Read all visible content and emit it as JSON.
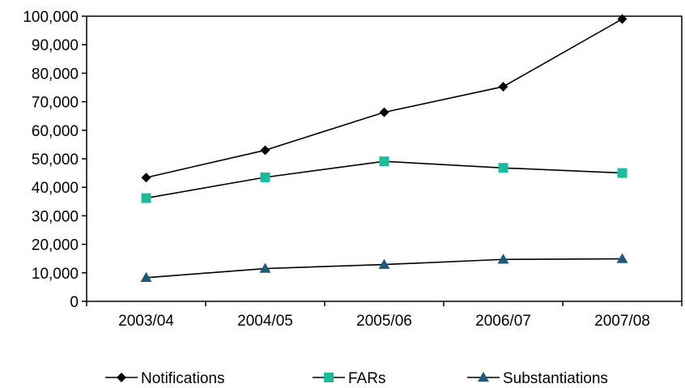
{
  "chart_data": {
    "type": "line",
    "categories": [
      "2003/04",
      "2004/05",
      "2005/06",
      "2006/07",
      "2007/08"
    ],
    "series": [
      {
        "name": "Notifications",
        "values": [
          43400,
          53000,
          66300,
          75300,
          99000
        ],
        "color": "#000000",
        "marker": "diamond"
      },
      {
        "name": "FARs",
        "values": [
          36200,
          43500,
          49100,
          46800,
          45000
        ],
        "color": "#1ABC9C",
        "marker": "square"
      },
      {
        "name": "Substantiations",
        "values": [
          8300,
          11500,
          12900,
          14700,
          14900
        ],
        "color": "#1F5A7A",
        "marker": "triangle"
      }
    ],
    "yticks": [
      "0",
      "10,000",
      "20,000",
      "30,000",
      "40,000",
      "50,000",
      "60,000",
      "70,000",
      "80,000",
      "90,000",
      "100,000"
    ],
    "ylim": [
      0,
      100000
    ],
    "legend_position": "bottom",
    "grid": false
  }
}
